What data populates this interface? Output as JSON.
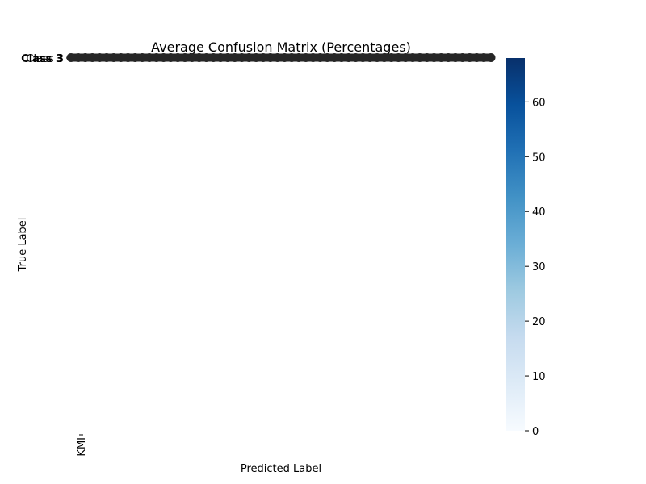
{
  "chart_data": {
    "type": "heatmap",
    "title": "Average Confusion Matrix (Percentages)",
    "xlabel": "Predicted Label",
    "ylabel": "True Label",
    "row_labels": [
      "Class 3"
    ],
    "x_tick_labels": [
      "KMI"
    ],
    "colorbar": {
      "ticks": [
        0,
        10,
        20,
        30,
        40,
        50,
        60
      ],
      "range": [
        0,
        68
      ],
      "colormap": "Blues",
      "colors": [
        "#f7fbff",
        "#deebf7",
        "#c6dbef",
        "#9ecae1",
        "#6baed6",
        "#4292c6",
        "#2171b5",
        "#08519c",
        "#08306b"
      ]
    },
    "overlapping_label_color": "#262626",
    "grid": false
  }
}
